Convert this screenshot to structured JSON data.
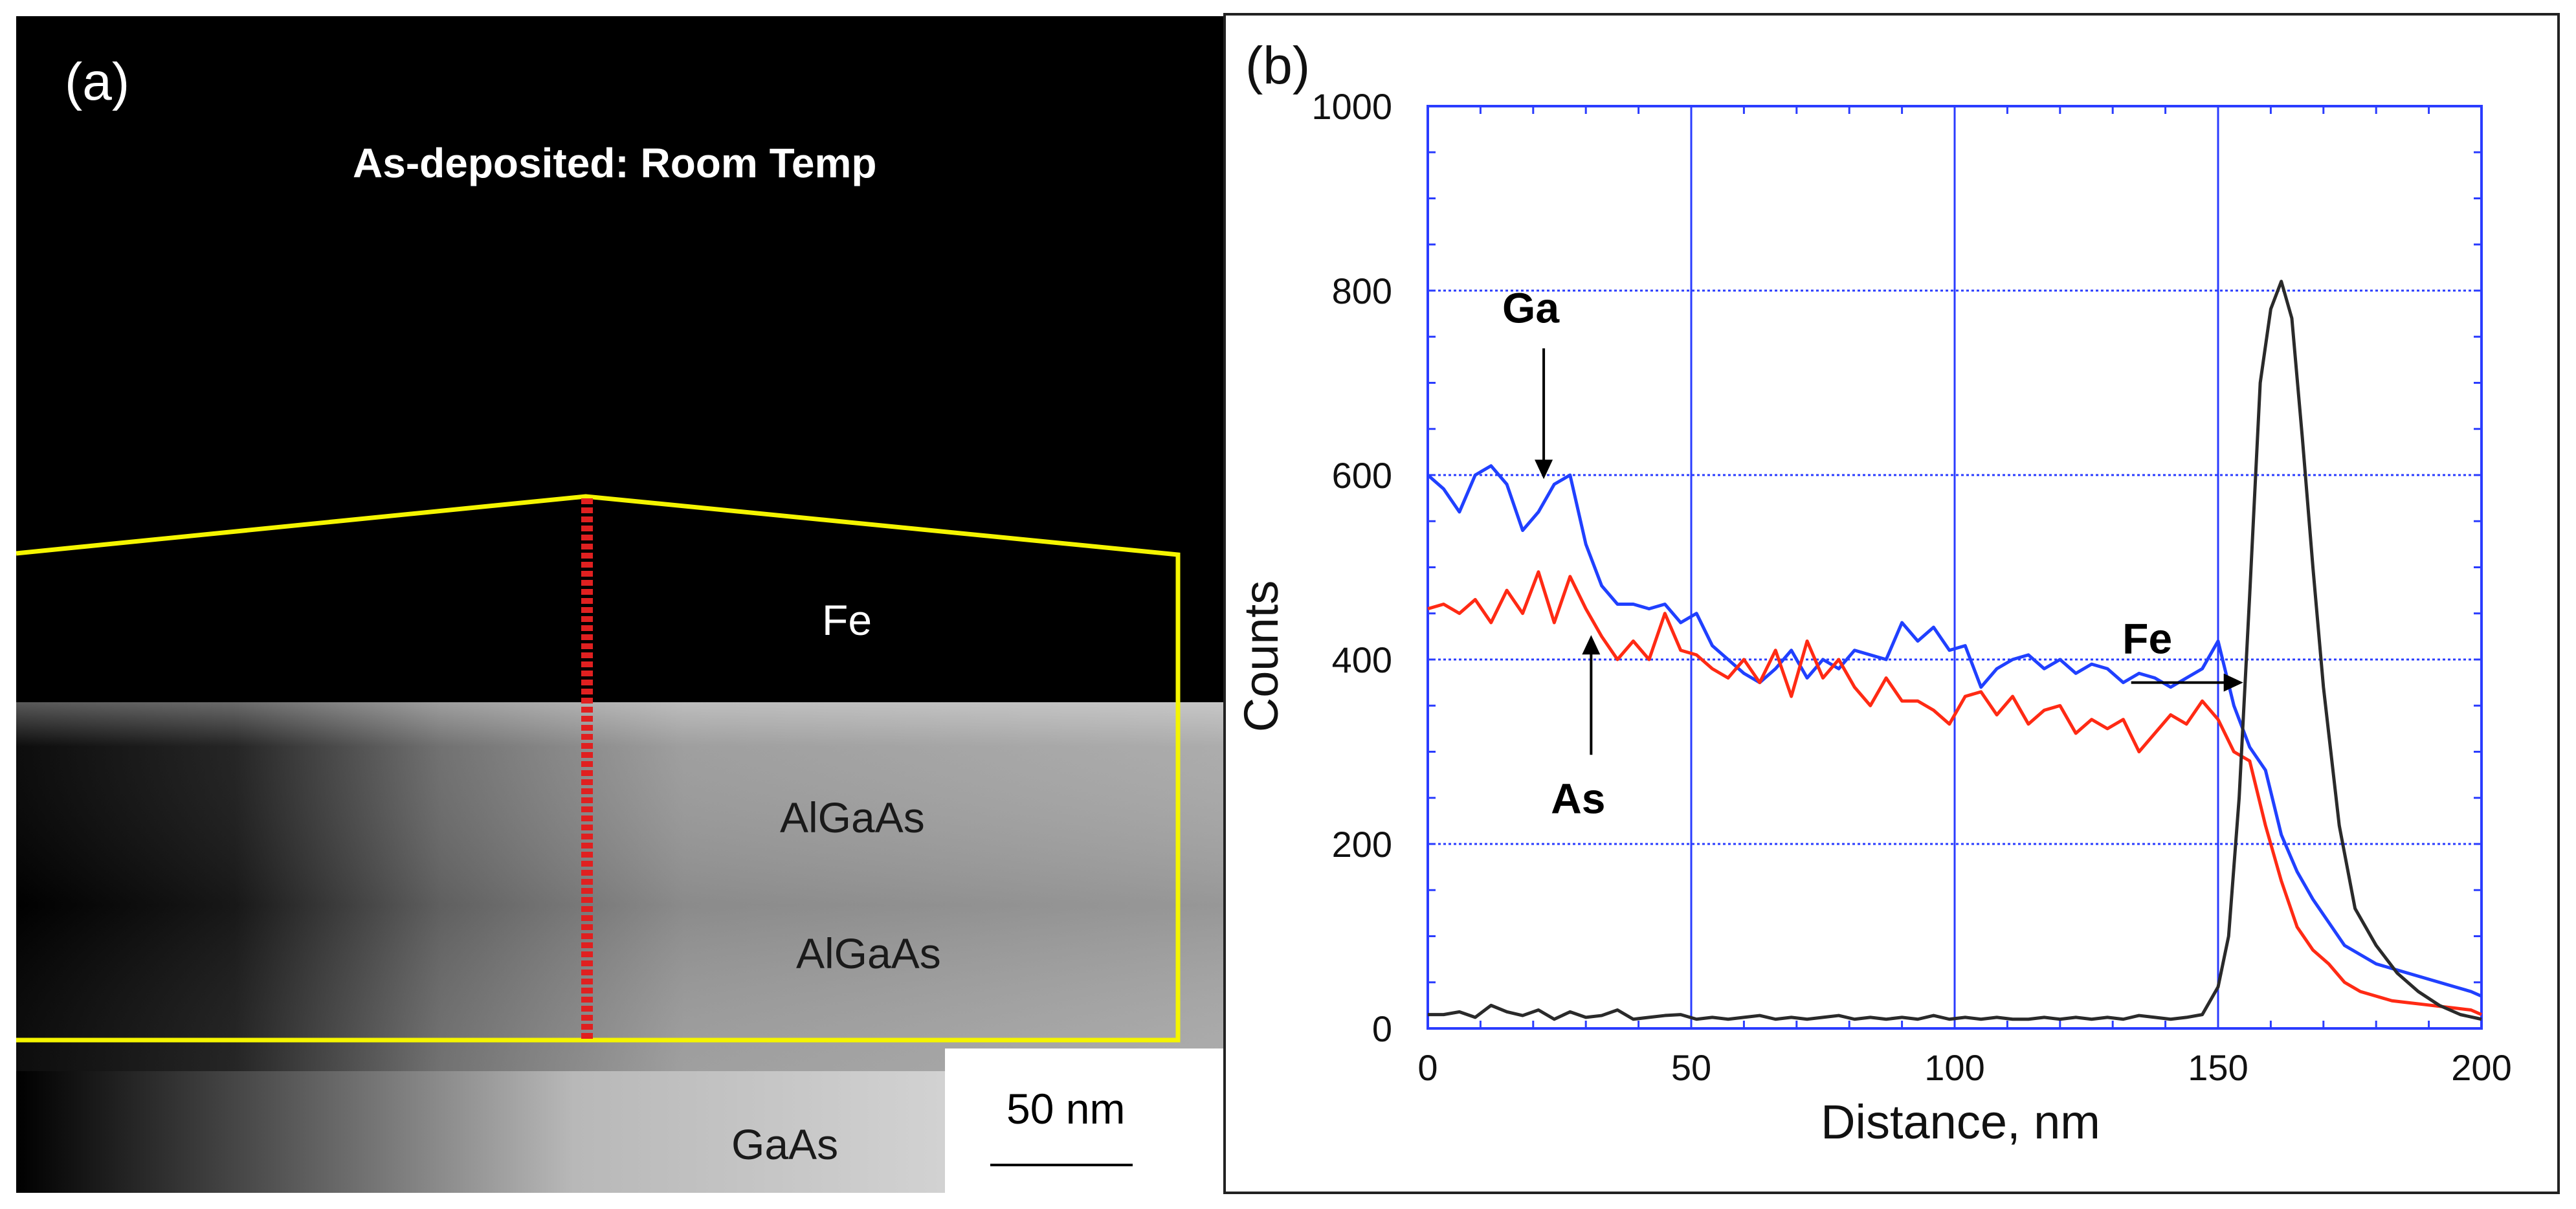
{
  "panel_a": {
    "letter": "(a)",
    "title": "As-deposited: Room Temp",
    "layers": {
      "fe": "Fe",
      "algaas_top": "AlGaAs",
      "algaas_bottom": "AlGaAs",
      "gaas": "GaAs"
    },
    "scale_bar": "50 nm",
    "colors": {
      "roi_outline": "#f5f500",
      "line_scan": "#e02020"
    }
  },
  "chart_data": {
    "type": "line",
    "panel_letter": "(b)",
    "title": "",
    "xlabel": "Distance, nm",
    "ylabel": "Counts",
    "xlim": [
      0,
      200
    ],
    "ylim": [
      0,
      1000
    ],
    "xticks": [
      0,
      50,
      100,
      150,
      200
    ],
    "yticks": [
      0,
      200,
      400,
      600,
      800,
      1000
    ],
    "grid": true,
    "annotations": [
      {
        "text": "Ga",
        "series": "Ga",
        "x_data": 22,
        "y_data": 590
      },
      {
        "text": "As",
        "series": "As",
        "x_data": 31,
        "y_data": 430
      },
      {
        "text": "Fe",
        "series": "Fe",
        "x_data": 155,
        "y_data": 375
      }
    ],
    "series": [
      {
        "name": "Ga",
        "color": "#2040ff",
        "x": [
          0,
          3,
          6,
          9,
          12,
          15,
          18,
          21,
          24,
          27,
          30,
          33,
          36,
          39,
          42,
          45,
          48,
          51,
          54,
          57,
          60,
          63,
          66,
          69,
          72,
          75,
          78,
          81,
          84,
          87,
          90,
          93,
          96,
          99,
          102,
          105,
          108,
          111,
          114,
          117,
          120,
          123,
          126,
          129,
          132,
          135,
          138,
          141,
          144,
          147,
          150,
          153,
          156,
          159,
          162,
          165,
          168,
          171,
          174,
          177,
          180,
          183,
          186,
          189,
          192,
          195,
          198,
          200
        ],
        "y": [
          600,
          585,
          560,
          600,
          610,
          590,
          540,
          560,
          590,
          600,
          525,
          480,
          460,
          460,
          455,
          460,
          440,
          450,
          415,
          400,
          385,
          375,
          390,
          410,
          380,
          400,
          390,
          410,
          405,
          400,
          440,
          420,
          435,
          410,
          415,
          370,
          390,
          400,
          405,
          390,
          400,
          385,
          395,
          390,
          375,
          385,
          380,
          370,
          380,
          390,
          420,
          350,
          305,
          280,
          210,
          170,
          140,
          115,
          90,
          80,
          70,
          65,
          60,
          55,
          50,
          45,
          40,
          35
        ]
      },
      {
        "name": "As",
        "color": "#ff2a14",
        "x": [
          0,
          3,
          6,
          9,
          12,
          15,
          18,
          21,
          24,
          27,
          30,
          33,
          36,
          39,
          42,
          45,
          48,
          51,
          54,
          57,
          60,
          63,
          66,
          69,
          72,
          75,
          78,
          81,
          84,
          87,
          90,
          93,
          96,
          99,
          102,
          105,
          108,
          111,
          114,
          117,
          120,
          123,
          126,
          129,
          132,
          135,
          138,
          141,
          144,
          147,
          150,
          153,
          156,
          159,
          162,
          165,
          168,
          171,
          174,
          177,
          180,
          183,
          186,
          189,
          192,
          195,
          198,
          200
        ],
        "y": [
          455,
          460,
          450,
          465,
          440,
          475,
          450,
          495,
          440,
          490,
          455,
          425,
          400,
          420,
          400,
          450,
          410,
          405,
          390,
          380,
          400,
          375,
          410,
          360,
          420,
          380,
          400,
          370,
          350,
          380,
          355,
          355,
          345,
          330,
          360,
          365,
          340,
          360,
          330,
          345,
          350,
          320,
          335,
          325,
          335,
          300,
          320,
          340,
          330,
          355,
          335,
          300,
          290,
          220,
          160,
          110,
          85,
          70,
          50,
          40,
          35,
          30,
          28,
          26,
          24,
          22,
          20,
          15
        ]
      },
      {
        "name": "Fe",
        "color": "#2a2a2a",
        "x": [
          0,
          3,
          6,
          9,
          12,
          15,
          18,
          21,
          24,
          27,
          30,
          33,
          36,
          39,
          42,
          45,
          48,
          51,
          54,
          57,
          60,
          63,
          66,
          69,
          72,
          75,
          78,
          81,
          84,
          87,
          90,
          93,
          96,
          99,
          102,
          105,
          108,
          111,
          114,
          117,
          120,
          123,
          126,
          129,
          132,
          135,
          138,
          141,
          144,
          147,
          150,
          152,
          154,
          156,
          158,
          160,
          162,
          164,
          166,
          168,
          170,
          173,
          176,
          180,
          184,
          188,
          192,
          196,
          200
        ],
        "y": [
          15,
          15,
          18,
          12,
          25,
          18,
          14,
          20,
          10,
          18,
          12,
          14,
          20,
          10,
          12,
          14,
          15,
          10,
          12,
          10,
          12,
          14,
          10,
          12,
          10,
          12,
          14,
          10,
          12,
          10,
          12,
          10,
          14,
          10,
          12,
          10,
          12,
          10,
          10,
          12,
          10,
          12,
          10,
          12,
          10,
          14,
          12,
          10,
          12,
          15,
          45,
          100,
          250,
          470,
          700,
          780,
          810,
          770,
          640,
          500,
          370,
          220,
          130,
          90,
          60,
          40,
          25,
          15,
          10
        ]
      }
    ]
  }
}
